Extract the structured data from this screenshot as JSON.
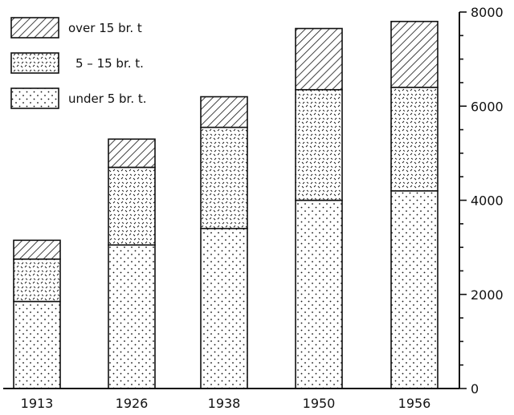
{
  "chart_data": {
    "type": "bar",
    "stacked": true,
    "categories": [
      "1913",
      "1926",
      "1938",
      "1950",
      "1956"
    ],
    "series": [
      {
        "name": "under 5 br. t.",
        "pattern": "dots",
        "values": [
          1850,
          3050,
          3400,
          4000,
          4200
        ]
      },
      {
        "name": "5 – 15 br. t.",
        "pattern": "dashes",
        "values": [
          900,
          1650,
          2150,
          2350,
          2200
        ]
      },
      {
        "name": "over 15 br. t",
        "pattern": "hatch",
        "values": [
          400,
          600,
          650,
          1300,
          1400
        ]
      }
    ],
    "title": "",
    "xlabel": "",
    "ylabel": "",
    "ylim": [
      0,
      8000
    ],
    "yticks": [
      0,
      2000,
      4000,
      6000,
      8000
    ],
    "ytick_labels": [
      "0",
      "2000",
      "4000",
      "6000",
      "8000"
    ],
    "y_axis_side": "right",
    "grid": false,
    "legend_position": "top-left",
    "legend_order": [
      "over 15 br. t",
      "5 – 15 br. t.",
      "under 5 br. t."
    ]
  }
}
